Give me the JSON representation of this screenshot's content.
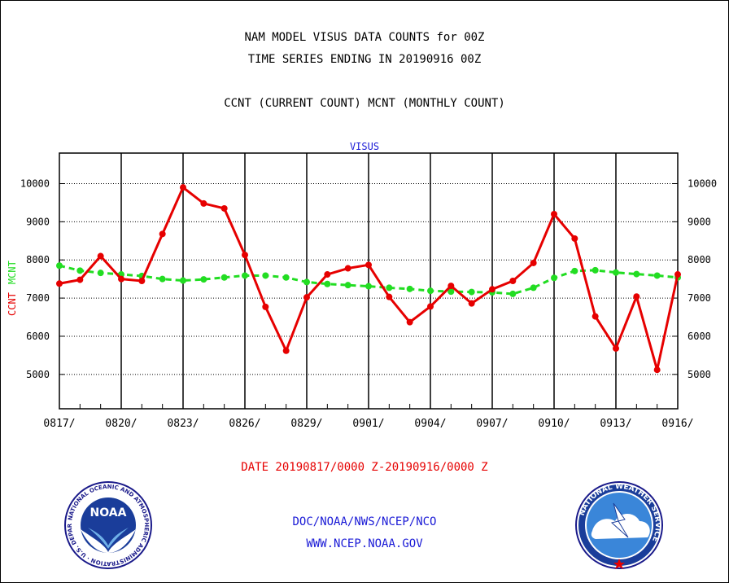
{
  "titles": {
    "line1": "NAM MODEL VISUS DATA COUNTS for 00Z",
    "line2": "TIME SERIES ENDING IN 20190916 00Z",
    "line3": "CCNT (CURRENT COUNT) MCNT (MONTHLY COUNT)"
  },
  "footer": {
    "date_range": "DATE 20190817/0000 Z-20190916/0000 Z",
    "org": "DOC/NOAA/NWS/NCEP/NCO",
    "url": "WWW.NCEP.NOAA.GOV"
  },
  "logos": {
    "noaa": {
      "text": "NOAA",
      "ring_text": "NATIONAL OCEANIC AND ATMOSPHERIC ADMINISTRATION · U.S. DEPARTMENT OF COMMERCE"
    },
    "nws": {
      "ring_text": "NATIONAL WEATHER SERVICE"
    }
  },
  "colors": {
    "ccnt": "#e60000",
    "mcnt": "#22dd22",
    "title_blue": "#1a1ad6"
  },
  "chart_data": {
    "type": "line",
    "title": "VISUS",
    "ylabel_left_parts": [
      {
        "text": "CCNT",
        "color": "#e60000"
      },
      {
        "text": "MCNT",
        "color": "#22dd22"
      }
    ],
    "ylim": [
      4100,
      10800
    ],
    "yticks": [
      5000,
      6000,
      7000,
      8000,
      9000,
      10000
    ],
    "ytick_labels": [
      "5000",
      "6000",
      "7000",
      "8000",
      "9000",
      "10000"
    ],
    "xlim": [
      0,
      30
    ],
    "xticks": [
      0,
      3,
      6,
      9,
      12,
      15,
      18,
      21,
      24,
      27,
      30
    ],
    "xtick_labels": [
      "0817/",
      "0820/",
      "0823/",
      "0826/",
      "0829/",
      "0901/",
      "0904/",
      "0907/",
      "0910/",
      "0913/",
      "0916/"
    ],
    "grid": true,
    "series": [
      {
        "name": "CCNT",
        "color": "#e60000",
        "style": "solid",
        "values": [
          7380,
          7480,
          8100,
          7500,
          7450,
          8680,
          9900,
          9480,
          9350,
          8130,
          6770,
          5620,
          7020,
          7620,
          7780,
          7870,
          7030,
          6370,
          6780,
          7320,
          6860,
          7230,
          7450,
          7920,
          9200,
          8560,
          6520,
          5680,
          7040,
          5120,
          7620
        ]
      },
      {
        "name": "MCNT",
        "color": "#22dd22",
        "style": "dashed",
        "values": [
          7850,
          7720,
          7660,
          7620,
          7580,
          7500,
          7460,
          7490,
          7540,
          7590,
          7590,
          7540,
          7420,
          7370,
          7340,
          7310,
          7270,
          7240,
          7190,
          7170,
          7160,
          7150,
          7110,
          7270,
          7530,
          7710,
          7730,
          7670,
          7630,
          7590,
          7540
        ]
      }
    ]
  }
}
